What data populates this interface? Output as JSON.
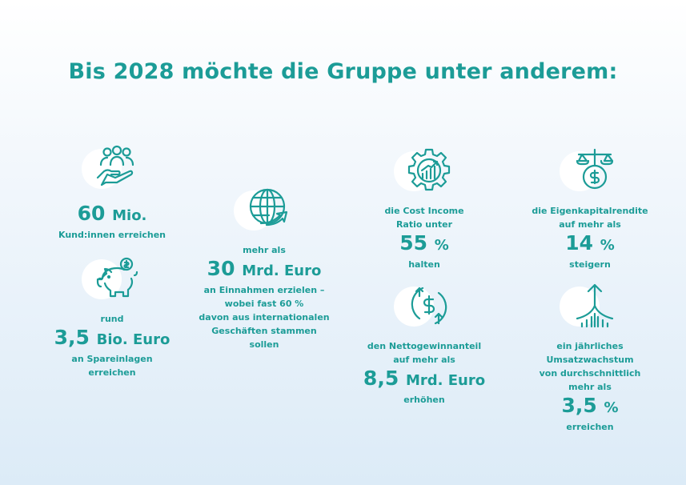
{
  "title": "Bis 2028 möchte die Gruppe unter anderem:",
  "accent": "#1c9c97",
  "blocks": [
    {
      "icon": "people-hand-icon",
      "pre": [],
      "number": "60",
      "unit": "Mio.",
      "post": [
        "Kund:innen erreichen"
      ]
    },
    {
      "icon": "piggy-bank-icon",
      "pre": [
        "rund"
      ],
      "number": "3,5",
      "unit": "Bio. Euro",
      "post": [
        "an Spareinlagen",
        "erreichen"
      ]
    },
    {
      "icon": "globe-arrow-icon",
      "pre": [
        "mehr als"
      ],
      "number": "30",
      "unit": "Mrd. Euro",
      "post": [
        "an Einnahmen erzielen –",
        "wobei fast 60 %",
        "davon aus internationalen",
        "Geschäften stammen",
        "sollen"
      ]
    },
    {
      "icon": "gear-chart-icon",
      "pre": [
        "die Cost Income",
        "Ratio unter"
      ],
      "number": "55",
      "unit": "%",
      "post": [
        "halten"
      ]
    },
    {
      "icon": "scale-dollar-icon",
      "pre": [
        "die Eigenkapitalrendite",
        "auf mehr als"
      ],
      "number": "14",
      "unit": "%",
      "post": [
        "steigern"
      ]
    },
    {
      "icon": "dollar-cycle-icon",
      "pre": [
        "den Nettogewinnanteil",
        "auf mehr als"
      ],
      "number": "8,5",
      "unit": "Mrd. Euro",
      "post": [
        "erhöhen"
      ]
    },
    {
      "icon": "growth-arrow-icon",
      "pre": [
        "ein jährliches",
        "Umsatzwachstum",
        "von durchschnittlich",
        "mehr als"
      ],
      "number": "3,5",
      "unit": "%",
      "post": [
        "erreichen"
      ]
    }
  ]
}
